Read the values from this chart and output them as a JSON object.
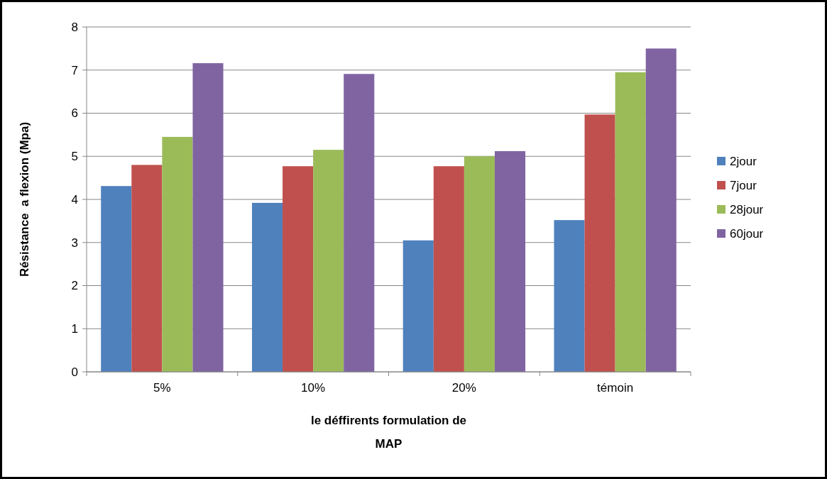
{
  "chart_data": {
    "type": "bar",
    "xlabel": "le déffirents formulation de MAP",
    "ylabel": "Résistance  a flexion (Mpa)",
    "categories": [
      "5%",
      "10%",
      "20%",
      "témoin"
    ],
    "series": [
      {
        "name": "2jour",
        "color": "#4f81bd",
        "values": [
          4.31,
          3.92,
          3.05,
          3.52
        ]
      },
      {
        "name": "7jour",
        "color": "#c0504d",
        "values": [
          4.8,
          4.77,
          4.77,
          5.97
        ]
      },
      {
        "name": "28jour",
        "color": "#9bbb59",
        "values": [
          5.45,
          5.15,
          5.0,
          6.95
        ]
      },
      {
        "name": "60jour",
        "color": "#8064a2",
        "values": [
          7.16,
          6.91,
          5.12,
          7.5
        ]
      }
    ],
    "ylim": [
      0,
      8
    ],
    "yticks": [
      0,
      1,
      2,
      3,
      4,
      5,
      6,
      7,
      8
    ],
    "grid": "y",
    "legend": "right"
  }
}
